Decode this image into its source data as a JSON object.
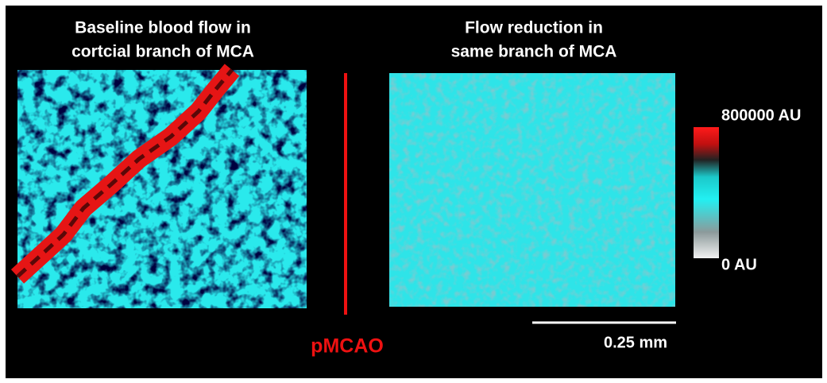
{
  "panels": [
    {
      "title_lines": [
        "Baseline blood flow in",
        "cortcial branch of MCA"
      ]
    },
    {
      "title_lines": [
        "Flow reduction in",
        "same branch of MCA"
      ]
    }
  ],
  "colorbar": {
    "max_label": "800000 AU",
    "min_label": "0 AU"
  },
  "divider_label": "pMCAO",
  "scale_bar_label": "0.25 mm"
}
